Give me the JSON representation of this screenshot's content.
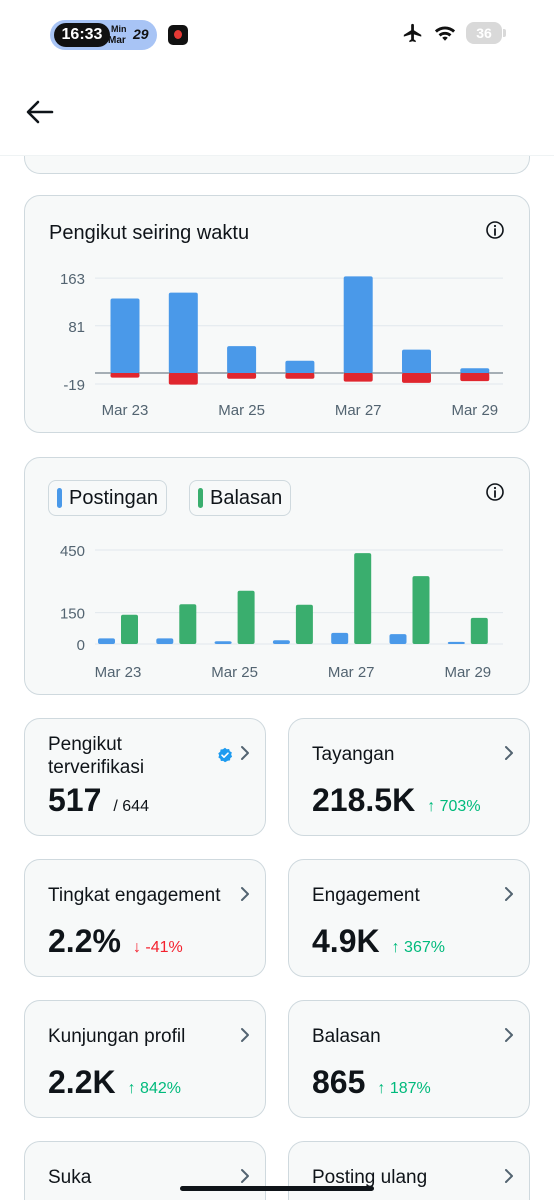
{
  "status_bar": {
    "time": "16:33",
    "min_label": "Min",
    "month": "Mar",
    "day": "29",
    "battery": "36"
  },
  "header": {
    "back_icon": "arrow-left-icon"
  },
  "followers_chart": {
    "title": "Pengikut seiring waktu",
    "info_icon": "info-icon",
    "y_ticks": [
      "163",
      "81",
      "-19"
    ],
    "x_ticks": [
      "Mar 23",
      "Mar 25",
      "Mar 27",
      "Mar 29"
    ]
  },
  "posts_chart": {
    "legend": [
      {
        "label": "Postingan",
        "color": "#4a99e9"
      },
      {
        "label": "Balasan",
        "color": "#3aae6e"
      }
    ],
    "info_icon": "info-icon",
    "y_ticks": [
      "450",
      "150",
      "0"
    ],
    "x_ticks": [
      "Mar 23",
      "Mar 25",
      "Mar 27",
      "Mar 29"
    ]
  },
  "chart_data": [
    {
      "type": "bar",
      "title": "Pengikut seiring waktu",
      "categories": [
        "Mar 23",
        "Mar 24",
        "Mar 25",
        "Mar 26",
        "Mar 27",
        "Mar 28",
        "Mar 29"
      ],
      "series": [
        {
          "values": [
            128,
            138,
            46,
            21,
            166,
            40,
            8
          ],
          "color": "#4a99e9"
        },
        {
          "values": [
            -8,
            -20,
            -10,
            -10,
            -15,
            -17,
            -14
          ],
          "color": "#e0262e"
        }
      ],
      "ylim": [
        -19,
        170
      ],
      "y_ticks": [
        163,
        81,
        -19
      ]
    },
    {
      "type": "bar",
      "categories": [
        "Mar 23",
        "Mar 24",
        "Mar 25",
        "Mar 26",
        "Mar 27",
        "Mar 28",
        "Mar 29"
      ],
      "series": [
        {
          "name": "Postingan",
          "values": [
            27,
            27,
            13,
            18,
            53,
            47,
            10
          ],
          "color": "#4a99e9"
        },
        {
          "name": "Balasan",
          "values": [
            140,
            190,
            255,
            188,
            435,
            325,
            125
          ],
          "color": "#3aae6e"
        }
      ],
      "ylim": [
        0,
        450
      ],
      "y_ticks": [
        450,
        150,
        0
      ]
    }
  ],
  "stats": [
    {
      "label": "Pengikut terverifikasi",
      "value": "517",
      "sub": "/ 644",
      "change": "",
      "direction": "",
      "verified": true
    },
    {
      "label": "Tayangan",
      "value": "218.5K",
      "sub": "",
      "change": "↑ 703%",
      "direction": "up"
    },
    {
      "label": "Tingkat engagement",
      "value": "2.2%",
      "sub": "",
      "change": "↓ -41%",
      "direction": "down"
    },
    {
      "label": "Engagement",
      "value": "4.9K",
      "sub": "",
      "change": "↑ 367%",
      "direction": "up"
    },
    {
      "label": "Kunjungan profil",
      "value": "2.2K",
      "sub": "",
      "change": "↑ 842%",
      "direction": "up"
    },
    {
      "label": "Balasan",
      "value": "865",
      "sub": "",
      "change": "↑ 187%",
      "direction": "up"
    },
    {
      "label": "Suka",
      "value": "",
      "sub": "",
      "change": "",
      "direction": ""
    },
    {
      "label": "Posting ulang",
      "value": "",
      "sub": "",
      "change": "",
      "direction": ""
    }
  ]
}
